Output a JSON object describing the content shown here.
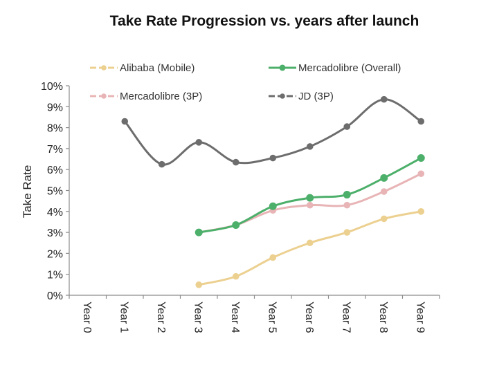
{
  "chart_data": {
    "type": "line",
    "title": "Take Rate Progression vs. years after launch",
    "xlabel": "",
    "ylabel": "Take Rate",
    "categories": [
      "Year 0",
      "Year 1",
      "Year 2",
      "Year 3",
      "Year 4",
      "Year 5",
      "Year 6",
      "Year 7",
      "Year 8",
      "Year 9"
    ],
    "ylim": [
      0,
      10
    ],
    "yticks": [
      "0%",
      "1%",
      "2%",
      "3%",
      "4%",
      "5%",
      "6%",
      "7%",
      "8%",
      "9%",
      "10%"
    ],
    "y_unit": "%",
    "grid": false,
    "legend_position": "top",
    "series": [
      {
        "name": "Alibaba (Mobile)",
        "color": "#ecd090",
        "values": [
          null,
          null,
          null,
          0.5,
          0.9,
          1.8,
          2.5,
          3.0,
          3.65,
          4.0
        ]
      },
      {
        "name": "Mercadolibre (Overall)",
        "color": "#4caf6a",
        "values": [
          null,
          null,
          null,
          3.0,
          3.35,
          4.25,
          4.65,
          4.8,
          5.6,
          6.55
        ]
      },
      {
        "name": "Mercadolibre (3P)",
        "color": "#e8b4b6",
        "values": [
          null,
          null,
          null,
          3.0,
          3.35,
          4.05,
          4.3,
          4.3,
          4.95,
          5.8
        ]
      },
      {
        "name": "JD (3P)",
        "color": "#6d6d6d",
        "values": [
          null,
          8.3,
          6.25,
          7.3,
          6.35,
          6.55,
          7.1,
          8.05,
          9.35,
          8.3
        ]
      }
    ]
  }
}
